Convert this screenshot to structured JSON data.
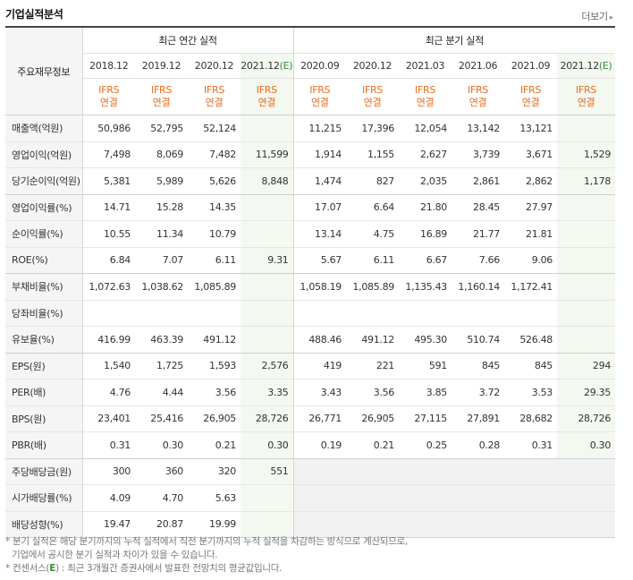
{
  "header": {
    "title": "기업실적분석",
    "more": "더보기",
    "more_icon": "chevron-right-icon"
  },
  "table": {
    "corner_label": "주요재무정보",
    "annual_group": "최근 연간 실적",
    "quarter_group": "최근 분기 실적",
    "annual_periods": [
      "2018.12",
      "2019.12",
      "2020.12",
      "2021.12"
    ],
    "quarter_periods": [
      "2020.09",
      "2020.12",
      "2021.03",
      "2021.06",
      "2021.09",
      "2021.12"
    ],
    "estimate_mark": "(E)",
    "basis_line1": "IFRS",
    "basis_line2": "연결",
    "rows": [
      {
        "label": "매출액(억원)",
        "annual": [
          "50,986",
          "52,795",
          "52,124",
          ""
        ],
        "quarter": [
          "11,215",
          "17,396",
          "12,054",
          "13,142",
          "13,121",
          ""
        ]
      },
      {
        "label": "영업이익(억원)",
        "annual": [
          "7,498",
          "8,069",
          "7,482",
          "11,599"
        ],
        "quarter": [
          "1,914",
          "1,155",
          "2,627",
          "3,739",
          "3,671",
          "1,529"
        ]
      },
      {
        "label": "당기순이익(억원)",
        "annual": [
          "5,381",
          "5,989",
          "5,626",
          "8,848"
        ],
        "quarter": [
          "1,474",
          "827",
          "2,035",
          "2,861",
          "2,862",
          "1,178"
        ]
      },
      {
        "label": "영업이익률(%)",
        "annual": [
          "14.71",
          "15.28",
          "14.35",
          ""
        ],
        "quarter": [
          "17.07",
          "6.64",
          "21.80",
          "28.45",
          "27.97",
          ""
        ]
      },
      {
        "label": "순이익률(%)",
        "annual": [
          "10.55",
          "11.34",
          "10.79",
          ""
        ],
        "quarter": [
          "13.14",
          "4.75",
          "16.89",
          "21.77",
          "21.81",
          ""
        ]
      },
      {
        "label": "ROE(%)",
        "annual": [
          "6.84",
          "7.07",
          "6.11",
          "9.31"
        ],
        "quarter": [
          "5.67",
          "6.11",
          "6.67",
          "7.66",
          "9.06",
          ""
        ]
      },
      {
        "label": "부채비율(%)",
        "annual": [
          "1,072.63",
          "1,038.62",
          "1,085.89",
          ""
        ],
        "quarter": [
          "1,058.19",
          "1,085.89",
          "1,135.43",
          "1,160.14",
          "1,172.41",
          ""
        ]
      },
      {
        "label": "당좌비율(%)",
        "annual": [
          "",
          "",
          "",
          ""
        ],
        "quarter": [
          "",
          "",
          "",
          "",
          "",
          ""
        ]
      },
      {
        "label": "유보율(%)",
        "annual": [
          "416.99",
          "463.39",
          "491.12",
          ""
        ],
        "quarter": [
          "488.46",
          "491.12",
          "495.30",
          "510.74",
          "526.48",
          ""
        ]
      },
      {
        "label": "EPS(원)",
        "annual": [
          "1,540",
          "1,725",
          "1,593",
          "2,576"
        ],
        "quarter": [
          "419",
          "221",
          "591",
          "845",
          "845",
          "294"
        ]
      },
      {
        "label": "PER(배)",
        "annual": [
          "4.76",
          "4.44",
          "3.56",
          "3.35"
        ],
        "quarter": [
          "3.43",
          "3.56",
          "3.85",
          "3.72",
          "3.53",
          "29.35"
        ]
      },
      {
        "label": "BPS(원)",
        "annual": [
          "23,401",
          "25,416",
          "26,905",
          "28,726"
        ],
        "quarter": [
          "26,771",
          "26,905",
          "27,115",
          "27,891",
          "28,682",
          "28,726"
        ]
      },
      {
        "label": "PBR(배)",
        "annual": [
          "0.31",
          "0.30",
          "0.21",
          "0.30"
        ],
        "quarter": [
          "0.19",
          "0.21",
          "0.25",
          "0.28",
          "0.31",
          "0.30"
        ]
      },
      {
        "label": "주당배당금(원)",
        "annual": [
          "300",
          "360",
          "320",
          "551"
        ],
        "quarter": [
          "",
          "",
          "",
          "",
          "",
          ""
        ]
      },
      {
        "label": "시가배당률(%)",
        "annual": [
          "4.09",
          "4.70",
          "5.63",
          ""
        ],
        "quarter": [
          "",
          "",
          "",
          "",
          "",
          ""
        ]
      },
      {
        "label": "배당성향(%)",
        "annual": [
          "19.47",
          "20.87",
          "19.99",
          ""
        ],
        "quarter": [
          "",
          "",
          "",
          "",
          "",
          ""
        ]
      }
    ]
  },
  "notes": {
    "line1": "* 분기 실적은 해당 분기까지의 누적 실적에서 직전 분기까지의 누적 실적을 차감하는 방식으로 계산되므로,",
    "line2": "기업에서 공시한 분기 실적과 차이가 있을 수 있습니다.",
    "line3_prefix": "* 컨센서스(",
    "line3_mark": "E",
    "line3_suffix": ") : 최근 3개월간 증권사에서 발표한 전망치의 평균값입니다."
  },
  "colors": {
    "ifrs": "#ea6c1c",
    "estimate": "#3d8d3d",
    "estimate_bg": "#f3f8f1",
    "label_bg": "#f5f5f5"
  }
}
